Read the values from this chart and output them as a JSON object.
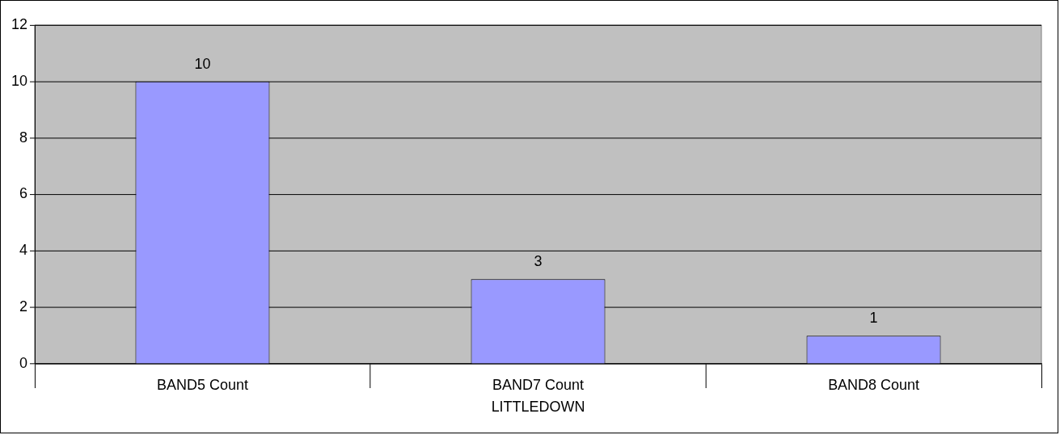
{
  "chart_data": {
    "type": "bar",
    "categories": [
      "BAND5 Count",
      "BAND7 Count",
      "BAND8 Count"
    ],
    "values": [
      10,
      3,
      1
    ],
    "color": "#9999ff",
    "xlabel": "LITTLEDOWN",
    "ylim": [
      0,
      12
    ],
    "yticks": [
      0,
      2,
      4,
      6,
      8,
      10,
      12
    ],
    "grid": "y",
    "legend": false,
    "data_labels": true
  }
}
